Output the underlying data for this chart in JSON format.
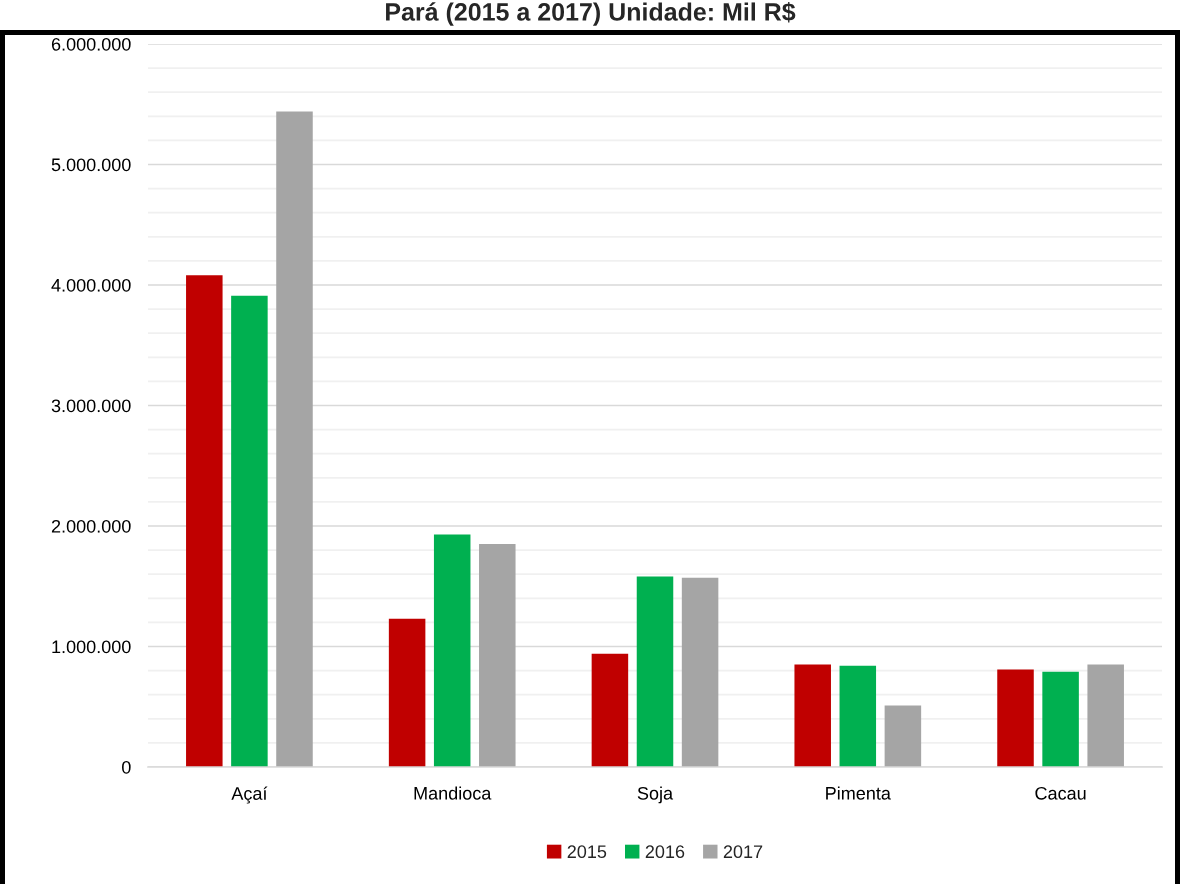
{
  "chart_data": {
    "type": "bar",
    "title": "Pará (2015 a 2017) Unidade: Mil R$",
    "categories": [
      "Açaí",
      "Mandioca",
      "Soja",
      "Pimenta",
      "Cacau"
    ],
    "series": [
      {
        "name": "2015",
        "color": "#c00000",
        "values": [
          4080000,
          1230000,
          940000,
          850000,
          810000
        ]
      },
      {
        "name": "2016",
        "color": "#00b050",
        "values": [
          3910000,
          1930000,
          1580000,
          840000,
          790000
        ]
      },
      {
        "name": "2017",
        "color": "#a5a5a5",
        "values": [
          5440000,
          1850000,
          1570000,
          510000,
          850000
        ]
      }
    ],
    "ylim": [
      0,
      6000000
    ],
    "yticks": [
      {
        "value": 0,
        "label": "0"
      },
      {
        "value": 200000,
        "label": null
      },
      {
        "value": 400000,
        "label": null
      },
      {
        "value": 600000,
        "label": null
      },
      {
        "value": 800000,
        "label": null
      },
      {
        "value": 1000000,
        "label": "1.000.000"
      },
      {
        "value": 1200000,
        "label": null
      },
      {
        "value": 1400000,
        "label": null
      },
      {
        "value": 1600000,
        "label": null
      },
      {
        "value": 1800000,
        "label": null
      },
      {
        "value": 2000000,
        "label": "2.000.000"
      },
      {
        "value": 2200000,
        "label": null
      },
      {
        "value": 2400000,
        "label": null
      },
      {
        "value": 2600000,
        "label": null
      },
      {
        "value": 2800000,
        "label": null
      },
      {
        "value": 3000000,
        "label": "3.000.000"
      },
      {
        "value": 3200000,
        "label": null
      },
      {
        "value": 3400000,
        "label": null
      },
      {
        "value": 3600000,
        "label": null
      },
      {
        "value": 3800000,
        "label": null
      },
      {
        "value": 4000000,
        "label": "4.000.000"
      },
      {
        "value": 4200000,
        "label": null
      },
      {
        "value": 4400000,
        "label": null
      },
      {
        "value": 4600000,
        "label": null
      },
      {
        "value": 4800000,
        "label": null
      },
      {
        "value": 5000000,
        "label": "5.000.000"
      },
      {
        "value": 5200000,
        "label": null
      },
      {
        "value": 5400000,
        "label": null
      },
      {
        "value": 5600000,
        "label": null
      },
      {
        "value": 5800000,
        "label": null
      },
      {
        "value": 6000000,
        "label": "6.000.000"
      }
    ],
    "grid": "y",
    "legend": "bottom"
  }
}
